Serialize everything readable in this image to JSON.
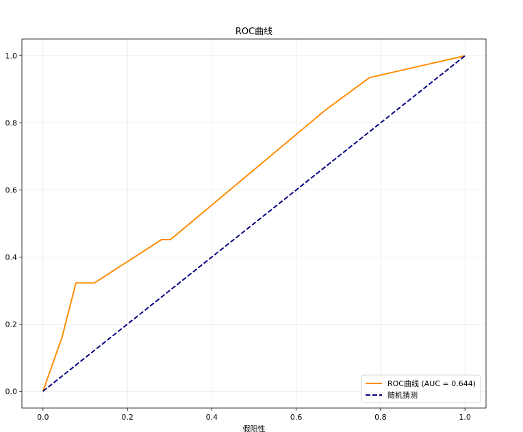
{
  "chart_data": {
    "type": "line",
    "title": "ROC曲线",
    "xlabel": "假阳性",
    "ylabel": "",
    "xlim": [
      -0.05,
      1.05
    ],
    "ylim": [
      -0.05,
      1.05
    ],
    "xticks": [
      0.0,
      0.2,
      0.4,
      0.6,
      0.8,
      1.0
    ],
    "yticks": [
      0.0,
      0.2,
      0.4,
      0.6,
      0.8,
      1.0
    ],
    "xtick_labels": [
      "0.0",
      "0.2",
      "0.4",
      "0.6",
      "0.8",
      "1.0"
    ],
    "ytick_labels": [
      "0.0",
      "0.2",
      "0.4",
      "0.6",
      "0.8",
      "1.0"
    ],
    "grid": true,
    "legend_position": "lower right",
    "series": [
      {
        "name": "ROC曲线 (AUC = 0.644)",
        "color": "#ff8c00",
        "style": "solid",
        "x": [
          0.0,
          0.045,
          0.078,
          0.122,
          0.281,
          0.302,
          0.67,
          0.774,
          1.0
        ],
        "y": [
          0.0,
          0.161,
          0.323,
          0.323,
          0.452,
          0.452,
          0.839,
          0.935,
          1.0
        ]
      },
      {
        "name": "随机猜测",
        "color": "#000080",
        "style": "dashed",
        "x": [
          0.0,
          1.0
        ],
        "y": [
          0.0,
          1.0
        ]
      }
    ]
  }
}
